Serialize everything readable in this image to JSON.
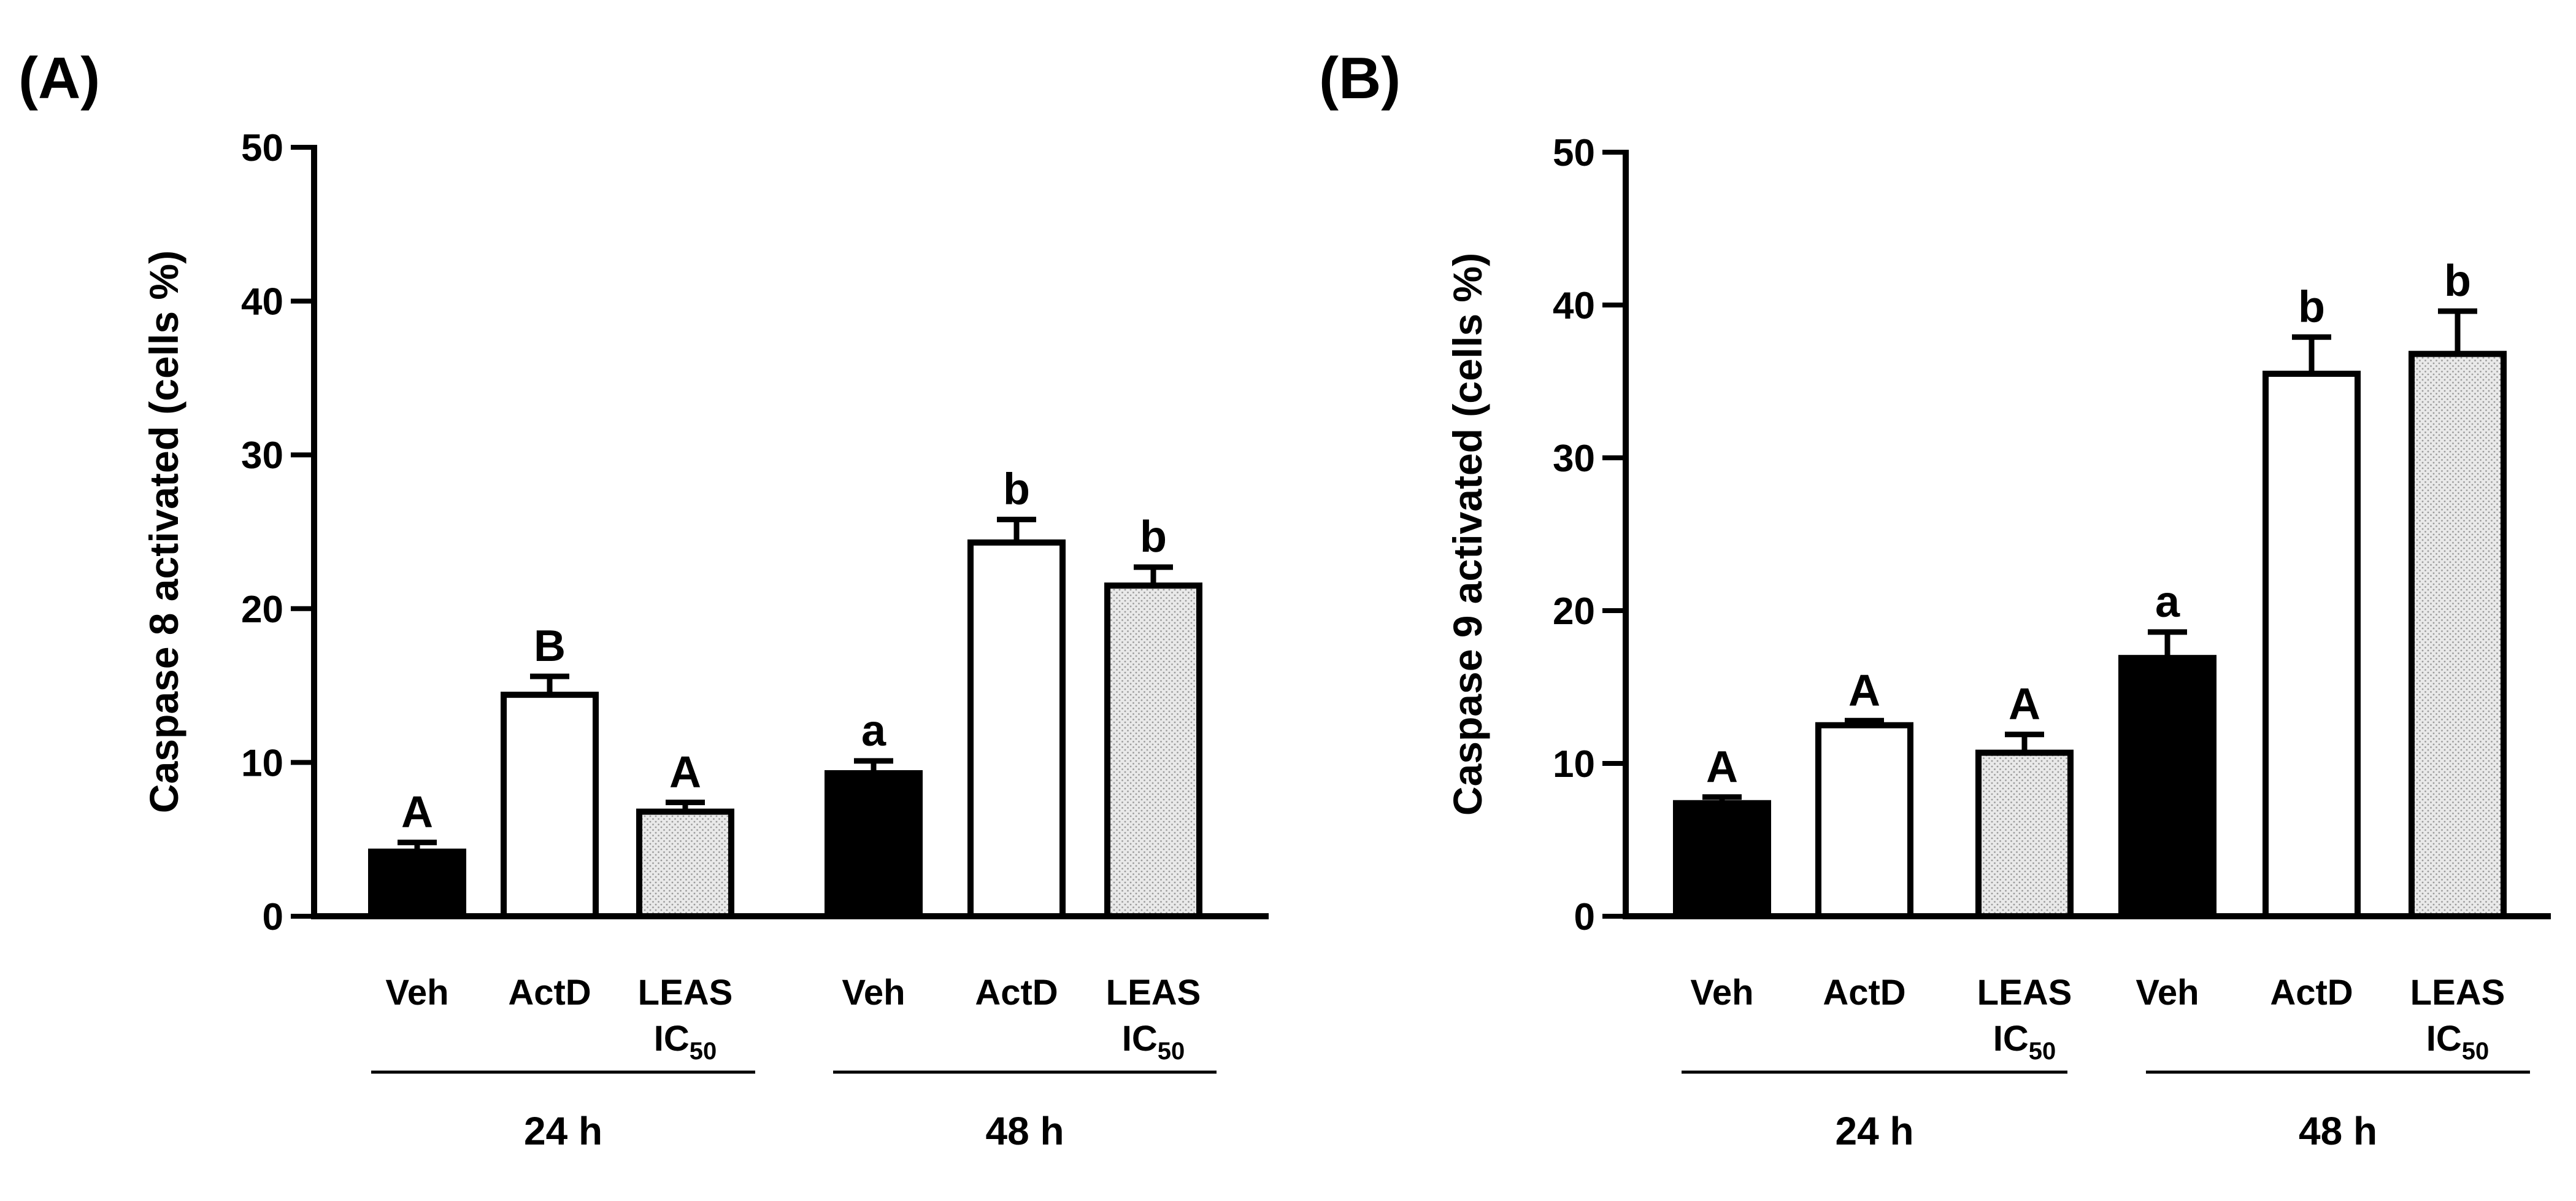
{
  "colors": {
    "veh_fill": "#000000",
    "actd_fill": "#ffffff",
    "leas_fill": "#e6e6e6",
    "stroke": "#000000"
  },
  "chart_data": [
    {
      "type": "bar",
      "panel_label": "(A)",
      "ylabel": "Caspase 8 activated (cells %)",
      "ylim": [
        0,
        50
      ],
      "yticks": [
        "0",
        "10",
        "20",
        "30",
        "40",
        "50"
      ],
      "groups": [
        "24 h",
        "48 h"
      ],
      "bars": [
        {
          "label": "Veh",
          "sub": "",
          "group": "24 h",
          "value": 4.2,
          "error": 0.6,
          "letter": "A",
          "fill": "veh"
        },
        {
          "label": "ActD",
          "sub": "",
          "group": "24 h",
          "value": 14.4,
          "error": 1.2,
          "letter": "B",
          "fill": "actd"
        },
        {
          "label": "LEAS",
          "sub": "IC50",
          "group": "24 h",
          "value": 6.8,
          "error": 0.6,
          "letter": "A",
          "fill": "leas"
        },
        {
          "label": "Veh",
          "sub": "",
          "group": "48 h",
          "value": 9.3,
          "error": 0.8,
          "letter": "a",
          "fill": "veh"
        },
        {
          "label": "ActD",
          "sub": "",
          "group": "48 h",
          "value": 24.3,
          "error": 1.5,
          "letter": "b",
          "fill": "actd"
        },
        {
          "label": "LEAS",
          "sub": "IC50",
          "group": "48 h",
          "value": 21.5,
          "error": 1.2,
          "letter": "b",
          "fill": "leas"
        }
      ]
    },
    {
      "type": "bar",
      "panel_label": "(B)",
      "ylabel": "Caspase 9 activated (cells %)",
      "ylim": [
        0,
        50
      ],
      "yticks": [
        "0",
        "10",
        "20",
        "30",
        "40",
        "50"
      ],
      "groups": [
        "24 h",
        "48 h"
      ],
      "bars": [
        {
          "label": "Veh",
          "sub": "",
          "group": "24 h",
          "value": 7.4,
          "error": 0.4,
          "letter": "A",
          "fill": "veh"
        },
        {
          "label": "ActD",
          "sub": "",
          "group": "24 h",
          "value": 12.5,
          "error": 0.3,
          "letter": "A",
          "fill": "actd"
        },
        {
          "label": "LEAS",
          "sub": "IC50",
          "group": "24 h",
          "value": 10.7,
          "error": 1.2,
          "letter": "A",
          "fill": "leas"
        },
        {
          "label": "Veh",
          "sub": "",
          "group": "48 h",
          "value": 16.9,
          "error": 1.7,
          "letter": "a",
          "fill": "veh"
        },
        {
          "label": "ActD",
          "sub": "",
          "group": "48 h",
          "value": 35.5,
          "error": 2.4,
          "letter": "b",
          "fill": "actd"
        },
        {
          "label": "LEAS",
          "sub": "IC50",
          "group": "48 h",
          "value": 36.8,
          "error": 2.8,
          "letter": "b",
          "fill": "leas"
        }
      ]
    }
  ]
}
